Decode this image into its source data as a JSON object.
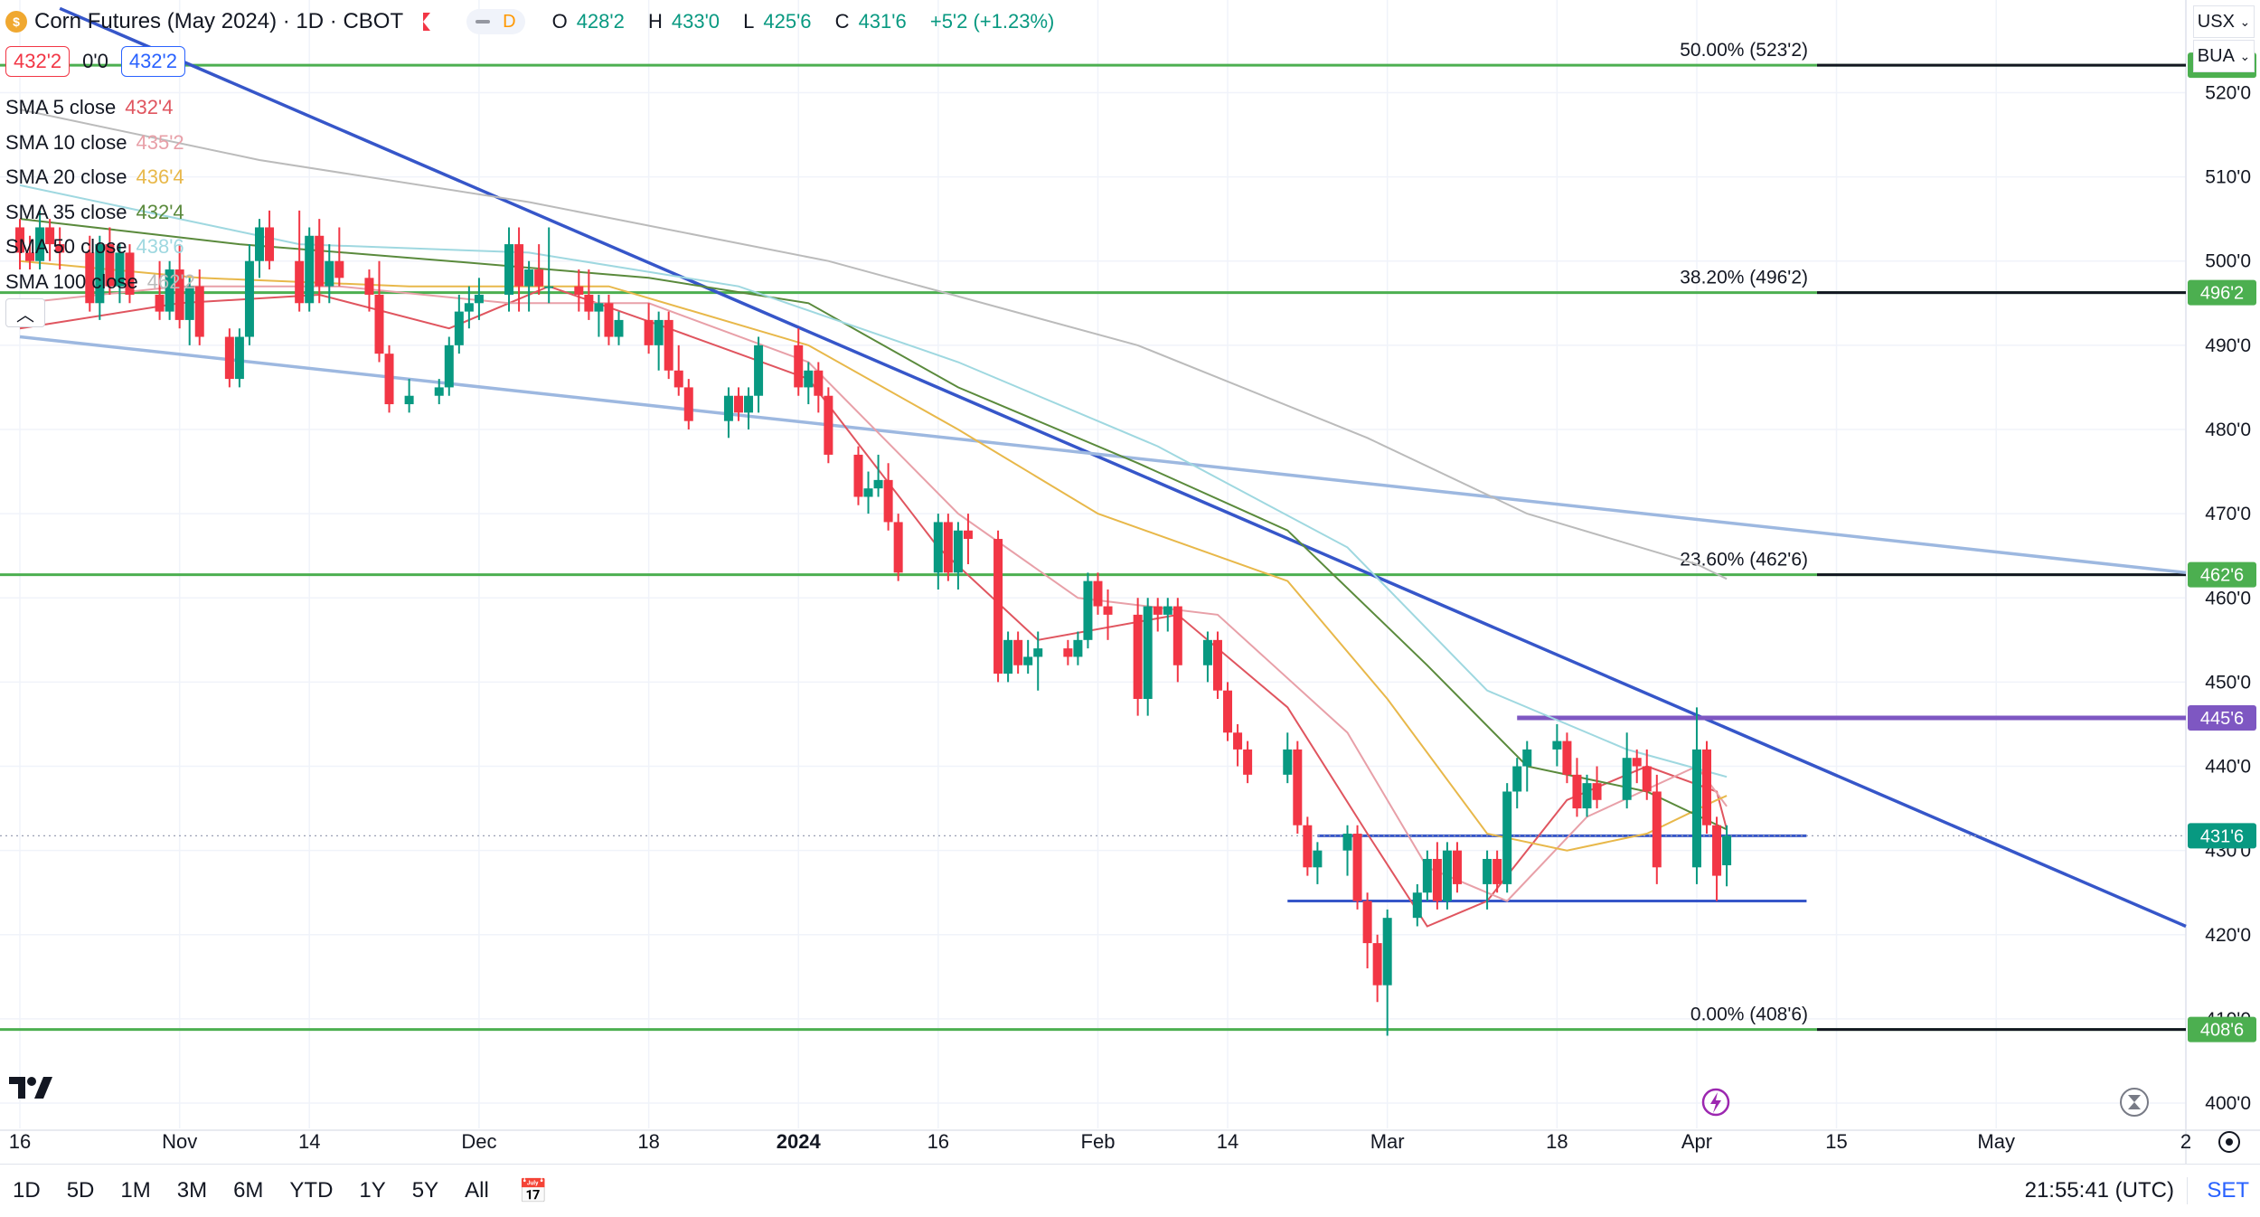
{
  "header": {
    "title": "Corn Futures (May 2024) · 1D · CBOT",
    "interval_badge": "D",
    "ohlc": {
      "o_label": "O",
      "o": "428'2",
      "h_label": "H",
      "h": "433'0",
      "l_label": "L",
      "l": "425'6",
      "c_label": "C",
      "c": "431'6",
      "change": "+5'2 (+1.23%)"
    },
    "bid": "432'2",
    "spread": "0'0",
    "ask": "432'2"
  },
  "indicators": [
    {
      "name": "SMA 5 close",
      "value": "432'4",
      "color": "#e0555f"
    },
    {
      "name": "SMA 10 close",
      "value": "435'2",
      "color": "#e8a0a8"
    },
    {
      "name": "SMA 20 close",
      "value": "436'4",
      "color": "#e8b84a"
    },
    {
      "name": "SMA 35 close",
      "value": "432'4",
      "color": "#5a8a3c"
    },
    {
      "name": "SMA 50 close",
      "value": "438'6",
      "color": "#9fd8e0"
    },
    {
      "name": "SMA 100 close",
      "value": "462'2",
      "color": "#bbbbbb"
    }
  ],
  "controls": {
    "currency": "USX",
    "unit": "BUA",
    "collapse_icon": "chevron-up-icon"
  },
  "price_axis": {
    "ticks": [
      "520'0",
      "510'0",
      "500'0",
      "490'0",
      "480'0",
      "470'0",
      "460'0",
      "450'0",
      "440'0",
      "430'0",
      "420'0",
      "410'0",
      "400'0"
    ]
  },
  "time_axis": {
    "labels": [
      {
        "text": "16"
      },
      {
        "text": "Nov"
      },
      {
        "text": "14"
      },
      {
        "text": "Dec"
      },
      {
        "text": "18"
      },
      {
        "text": "2024",
        "bold": true
      },
      {
        "text": "16"
      },
      {
        "text": "Feb"
      },
      {
        "text": "14"
      },
      {
        "text": "Mar"
      },
      {
        "text": "18"
      },
      {
        "text": "Apr"
      },
      {
        "text": "15"
      },
      {
        "text": "May"
      },
      {
        "text": "2"
      }
    ]
  },
  "fib_levels": [
    {
      "label": "50.00% (523'2)",
      "tag": "523'2",
      "price": 523.25
    },
    {
      "label": "38.20% (496'2)",
      "tag": "496'2",
      "price": 496.25
    },
    {
      "label": "23.60% (462'6)",
      "tag": "462'6",
      "price": 462.75
    },
    {
      "label": "0.00% (408'6)",
      "tag": "408'6",
      "price": 408.75
    }
  ],
  "price_tags": [
    {
      "text": "445'6",
      "price": 445.75,
      "color": "#7e57c2"
    },
    {
      "text": "431'6",
      "price": 431.75,
      "color": "#089981"
    }
  ],
  "bottom_bar": {
    "ranges": [
      "1D",
      "5D",
      "1M",
      "3M",
      "6M",
      "YTD",
      "1Y",
      "5Y",
      "All"
    ],
    "clock": "21:55:41 (UTC)",
    "session": "SET"
  },
  "colors": {
    "up": "#089981",
    "down": "#f23645",
    "fib": "#4caf50",
    "trend": "#3656c9",
    "trend_light": "#9db8e0",
    "range": "#3656c9",
    "resistance": "#7e57c2"
  },
  "chart_data": {
    "type": "candlestick",
    "title": "Corn Futures (May 2024) · 1D · CBOT",
    "ylim": [
      397,
      531
    ],
    "x_start": "2023-10-16",
    "x_end": "2024-05-20",
    "grid": true,
    "candles": [
      [
        "2023-10-16",
        504,
        505,
        499,
        501
      ],
      [
        "2023-10-17",
        501,
        503,
        499,
        500
      ],
      [
        "2023-10-18",
        500,
        506,
        499,
        504
      ],
      [
        "2023-10-19",
        504,
        505,
        500,
        502
      ],
      [
        "2023-10-20",
        502,
        504,
        499,
        501
      ],
      [
        "2023-10-23",
        501,
        503,
        494,
        495
      ],
      [
        "2023-10-24",
        495,
        503,
        493,
        502
      ],
      [
        "2023-10-25",
        502,
        504,
        496,
        497
      ],
      [
        "2023-10-26",
        497,
        502,
        495,
        501
      ],
      [
        "2023-10-27",
        501,
        502,
        495,
        496
      ],
      [
        "2023-10-30",
        496,
        500,
        493,
        494
      ],
      [
        "2023-10-31",
        494,
        500,
        493,
        499
      ],
      [
        "2023-11-01",
        499,
        502,
        492,
        493
      ],
      [
        "2023-11-02",
        493,
        498,
        490,
        497
      ],
      [
        "2023-11-03",
        497,
        499,
        490,
        491
      ],
      [
        "2023-11-06",
        491,
        492,
        485,
        486
      ],
      [
        "2023-11-07",
        486,
        492,
        485,
        491
      ],
      [
        "2023-11-08",
        491,
        502,
        490,
        500
      ],
      [
        "2023-11-09",
        500,
        505,
        498,
        504
      ],
      [
        "2023-11-10",
        504,
        506,
        499,
        500
      ],
      [
        "2023-11-13",
        500,
        506,
        494,
        495
      ],
      [
        "2023-11-14",
        495,
        504,
        494,
        503
      ],
      [
        "2023-11-15",
        503,
        505,
        495,
        497
      ],
      [
        "2023-11-16",
        497,
        502,
        495,
        500
      ],
      [
        "2023-11-17",
        500,
        504,
        497,
        498
      ],
      [
        "2023-11-20",
        498,
        499,
        494,
        496
      ],
      [
        "2023-11-21",
        496,
        500,
        488,
        489
      ],
      [
        "2023-11-22",
        489,
        490,
        482,
        483
      ],
      [
        "2023-11-24",
        483,
        486,
        482,
        484
      ],
      [
        "2023-11-27",
        484,
        486,
        483,
        485
      ],
      [
        "2023-11-28",
        485,
        491,
        484,
        490
      ],
      [
        "2023-11-29",
        490,
        496,
        489,
        494
      ],
      [
        "2023-11-30",
        494,
        497,
        492,
        495
      ],
      [
        "2023-12-01",
        495,
        498,
        493,
        496
      ],
      [
        "2023-12-04",
        496,
        504,
        494,
        502
      ],
      [
        "2023-12-05",
        502,
        504,
        494,
        497
      ],
      [
        "2023-12-06",
        497,
        500,
        494,
        499
      ],
      [
        "2023-12-07",
        499,
        502,
        496,
        497
      ],
      [
        "2023-12-08",
        497,
        504,
        495,
        497
      ],
      [
        "2023-12-11",
        497,
        499,
        494,
        496
      ],
      [
        "2023-12-12",
        496,
        499,
        493,
        494
      ],
      [
        "2023-12-13",
        494,
        496,
        491,
        495
      ],
      [
        "2023-12-14",
        495,
        496,
        490,
        491
      ],
      [
        "2023-12-15",
        491,
        494,
        490,
        493
      ],
      [
        "2023-12-18",
        493,
        495,
        489,
        490
      ],
      [
        "2023-12-19",
        490,
        494,
        487,
        493
      ],
      [
        "2023-12-20",
        493,
        494,
        486,
        487
      ],
      [
        "2023-12-21",
        487,
        490,
        484,
        485
      ],
      [
        "2023-12-22",
        485,
        486,
        480,
        481
      ],
      [
        "2023-12-26",
        481,
        485,
        479,
        484
      ],
      [
        "2023-12-27",
        484,
        485,
        481,
        482
      ],
      [
        "2023-12-28",
        482,
        485,
        480,
        484
      ],
      [
        "2023-12-29",
        484,
        491,
        482,
        490
      ],
      [
        "2024-01-02",
        490,
        492,
        484,
        485
      ],
      [
        "2024-01-03",
        485,
        488,
        483,
        487
      ],
      [
        "2024-01-04",
        487,
        488,
        482,
        484
      ],
      [
        "2024-01-05",
        484,
        485,
        476,
        477
      ],
      [
        "2024-01-08",
        477,
        478,
        471,
        472
      ],
      [
        "2024-01-09",
        472,
        475,
        470,
        473
      ],
      [
        "2024-01-10",
        473,
        477,
        472,
        474
      ],
      [
        "2024-01-11",
        474,
        476,
        468,
        469
      ],
      [
        "2024-01-12",
        469,
        470,
        462,
        463
      ],
      [
        "2024-01-16",
        463,
        470,
        461,
        469
      ],
      [
        "2024-01-17",
        469,
        470,
        462,
        463
      ],
      [
        "2024-01-18",
        463,
        469,
        461,
        468
      ],
      [
        "2024-01-19",
        468,
        470,
        464,
        467
      ],
      [
        "2024-01-22",
        467,
        468,
        450,
        451
      ],
      [
        "2024-01-23",
        451,
        456,
        450,
        455
      ],
      [
        "2024-01-24",
        455,
        456,
        451,
        452
      ],
      [
        "2024-01-25",
        452,
        455,
        451,
        453
      ],
      [
        "2024-01-26",
        453,
        456,
        449,
        454
      ],
      [
        "2024-01-29",
        454,
        455,
        452,
        453
      ],
      [
        "2024-01-30",
        453,
        456,
        452,
        455
      ],
      [
        "2024-01-31",
        455,
        463,
        454,
        462
      ],
      [
        "2024-02-01",
        462,
        463,
        458,
        459
      ],
      [
        "2024-02-02",
        459,
        461,
        455,
        458
      ],
      [
        "2024-02-05",
        458,
        460,
        446,
        448
      ],
      [
        "2024-02-06",
        448,
        460,
        446,
        459
      ],
      [
        "2024-02-07",
        459,
        460,
        456,
        458
      ],
      [
        "2024-02-08",
        458,
        460,
        456,
        459
      ],
      [
        "2024-02-09",
        459,
        460,
        450,
        452
      ],
      [
        "2024-02-12",
        452,
        456,
        450,
        455
      ],
      [
        "2024-02-13",
        455,
        456,
        448,
        449
      ],
      [
        "2024-02-14",
        449,
        450,
        443,
        444
      ],
      [
        "2024-02-15",
        444,
        445,
        440,
        442
      ],
      [
        "2024-02-16",
        442,
        443,
        438,
        439
      ],
      [
        "2024-02-20",
        439,
        444,
        438,
        442
      ],
      [
        "2024-02-21",
        442,
        443,
        432,
        433
      ],
      [
        "2024-02-22",
        433,
        434,
        427,
        428
      ],
      [
        "2024-02-23",
        428,
        431,
        426,
        430
      ],
      [
        "2024-02-26",
        430,
        433,
        427,
        432
      ],
      [
        "2024-02-27",
        432,
        433,
        423,
        424
      ],
      [
        "2024-02-28",
        424,
        425,
        416,
        419
      ],
      [
        "2024-02-29",
        419,
        420,
        412,
        414
      ],
      [
        "2024-03-01",
        414,
        423,
        408,
        422
      ],
      [
        "2024-03-04",
        422,
        426,
        421,
        425
      ],
      [
        "2024-03-05",
        425,
        430,
        424,
        429
      ],
      [
        "2024-03-06",
        429,
        431,
        423,
        424
      ],
      [
        "2024-03-07",
        424,
        431,
        423,
        430
      ],
      [
        "2024-03-08",
        430,
        431,
        425,
        426
      ],
      [
        "2024-03-11",
        426,
        430,
        423,
        429
      ],
      [
        "2024-03-12",
        429,
        430,
        425,
        426
      ],
      [
        "2024-03-13",
        426,
        438,
        425,
        437
      ],
      [
        "2024-03-14",
        437,
        441,
        435,
        440
      ],
      [
        "2024-03-15",
        440,
        443,
        437,
        442
      ],
      [
        "2024-03-18",
        442,
        445,
        440,
        443
      ],
      [
        "2024-03-19",
        443,
        444,
        438,
        439
      ],
      [
        "2024-03-20",
        439,
        441,
        434,
        435
      ],
      [
        "2024-03-21",
        435,
        439,
        434,
        438
      ],
      [
        "2024-03-22",
        438,
        440,
        435,
        436
      ],
      [
        "2024-03-25",
        436,
        444,
        435,
        441
      ],
      [
        "2024-03-26",
        441,
        442,
        438,
        440
      ],
      [
        "2024-03-27",
        440,
        442,
        436,
        437
      ],
      [
        "2024-03-28",
        437,
        439,
        426,
        428
      ],
      [
        "2024-04-01",
        428,
        447,
        426,
        442
      ],
      [
        "2024-04-02",
        442,
        443,
        432,
        433
      ],
      [
        "2024-04-03",
        433,
        434,
        424,
        427
      ],
      [
        "2024-04-04",
        428.25,
        433,
        425.75,
        431.75
      ]
    ],
    "sma": {
      "SMA 5 close": [
        [
          0,
          492
        ],
        [
          12,
          495
        ],
        [
          22,
          496
        ],
        [
          30,
          492
        ],
        [
          38,
          497
        ],
        [
          46,
          492
        ],
        [
          54,
          486
        ],
        [
          62,
          466
        ],
        [
          70,
          455
        ],
        [
          80,
          458
        ],
        [
          86,
          447
        ],
        [
          92,
          432
        ],
        [
          96,
          421
        ],
        [
          100,
          424
        ],
        [
          106,
          436
        ],
        [
          112,
          440
        ],
        [
          116,
          437
        ],
        [
          121,
          432.5
        ]
      ],
      "SMA 10 close": [
        [
          0,
          495
        ],
        [
          12,
          497
        ],
        [
          24,
          497
        ],
        [
          34,
          495
        ],
        [
          44,
          495
        ],
        [
          54,
          488
        ],
        [
          64,
          470
        ],
        [
          72,
          460
        ],
        [
          82,
          458
        ],
        [
          90,
          444
        ],
        [
          96,
          428
        ],
        [
          102,
          424
        ],
        [
          108,
          434
        ],
        [
          114,
          440
        ],
        [
          121,
          435.25
        ]
      ],
      "SMA 20 close": [
        [
          0,
          500
        ],
        [
          14,
          498
        ],
        [
          28,
          497
        ],
        [
          42,
          497
        ],
        [
          54,
          490
        ],
        [
          64,
          480
        ],
        [
          74,
          470
        ],
        [
          86,
          462
        ],
        [
          94,
          448
        ],
        [
          100,
          432
        ],
        [
          106,
          430
        ],
        [
          112,
          432
        ],
        [
          116,
          436
        ],
        [
          121,
          436.5
        ]
      ],
      "SMA 35 close": [
        [
          0,
          505
        ],
        [
          16,
          502
        ],
        [
          30,
          500
        ],
        [
          44,
          498
        ],
        [
          54,
          495
        ],
        [
          64,
          485
        ],
        [
          76,
          476
        ],
        [
          86,
          468
        ],
        [
          96,
          452
        ],
        [
          104,
          440
        ],
        [
          112,
          437
        ],
        [
          121,
          432.5
        ]
      ],
      "SMA 50 close": [
        [
          0,
          509
        ],
        [
          20,
          502
        ],
        [
          36,
          501
        ],
        [
          50,
          497
        ],
        [
          64,
          488
        ],
        [
          78,
          478
        ],
        [
          90,
          466
        ],
        [
          100,
          449
        ],
        [
          110,
          442
        ],
        [
          121,
          438.75
        ]
      ],
      "SMA 100 close": [
        [
          0,
          518
        ],
        [
          18,
          512
        ],
        [
          36,
          507
        ],
        [
          56,
          500
        ],
        [
          76,
          490
        ],
        [
          92,
          479
        ],
        [
          104,
          470
        ],
        [
          114,
          464
        ],
        [
          121,
          462.25
        ]
      ]
    },
    "trendlines": [
      {
        "name": "downtrend",
        "from": [
          "2023-10-20",
          530
        ],
        "to": [
          "2024-05-20",
          421
        ]
      },
      {
        "name": "long-channel",
        "from": [
          "2023-10-16",
          491
        ],
        "to": [
          "2024-05-20",
          463
        ]
      }
    ],
    "horizontal_levels": [
      {
        "from": "2024-03-14",
        "to": "2024-05-20",
        "price": 445.75
      },
      {
        "from": "2024-02-23",
        "to": "2024-04-12",
        "price": 431.75
      },
      {
        "from": "2024-02-20",
        "to": "2024-04-12",
        "price": 424
      }
    ]
  }
}
